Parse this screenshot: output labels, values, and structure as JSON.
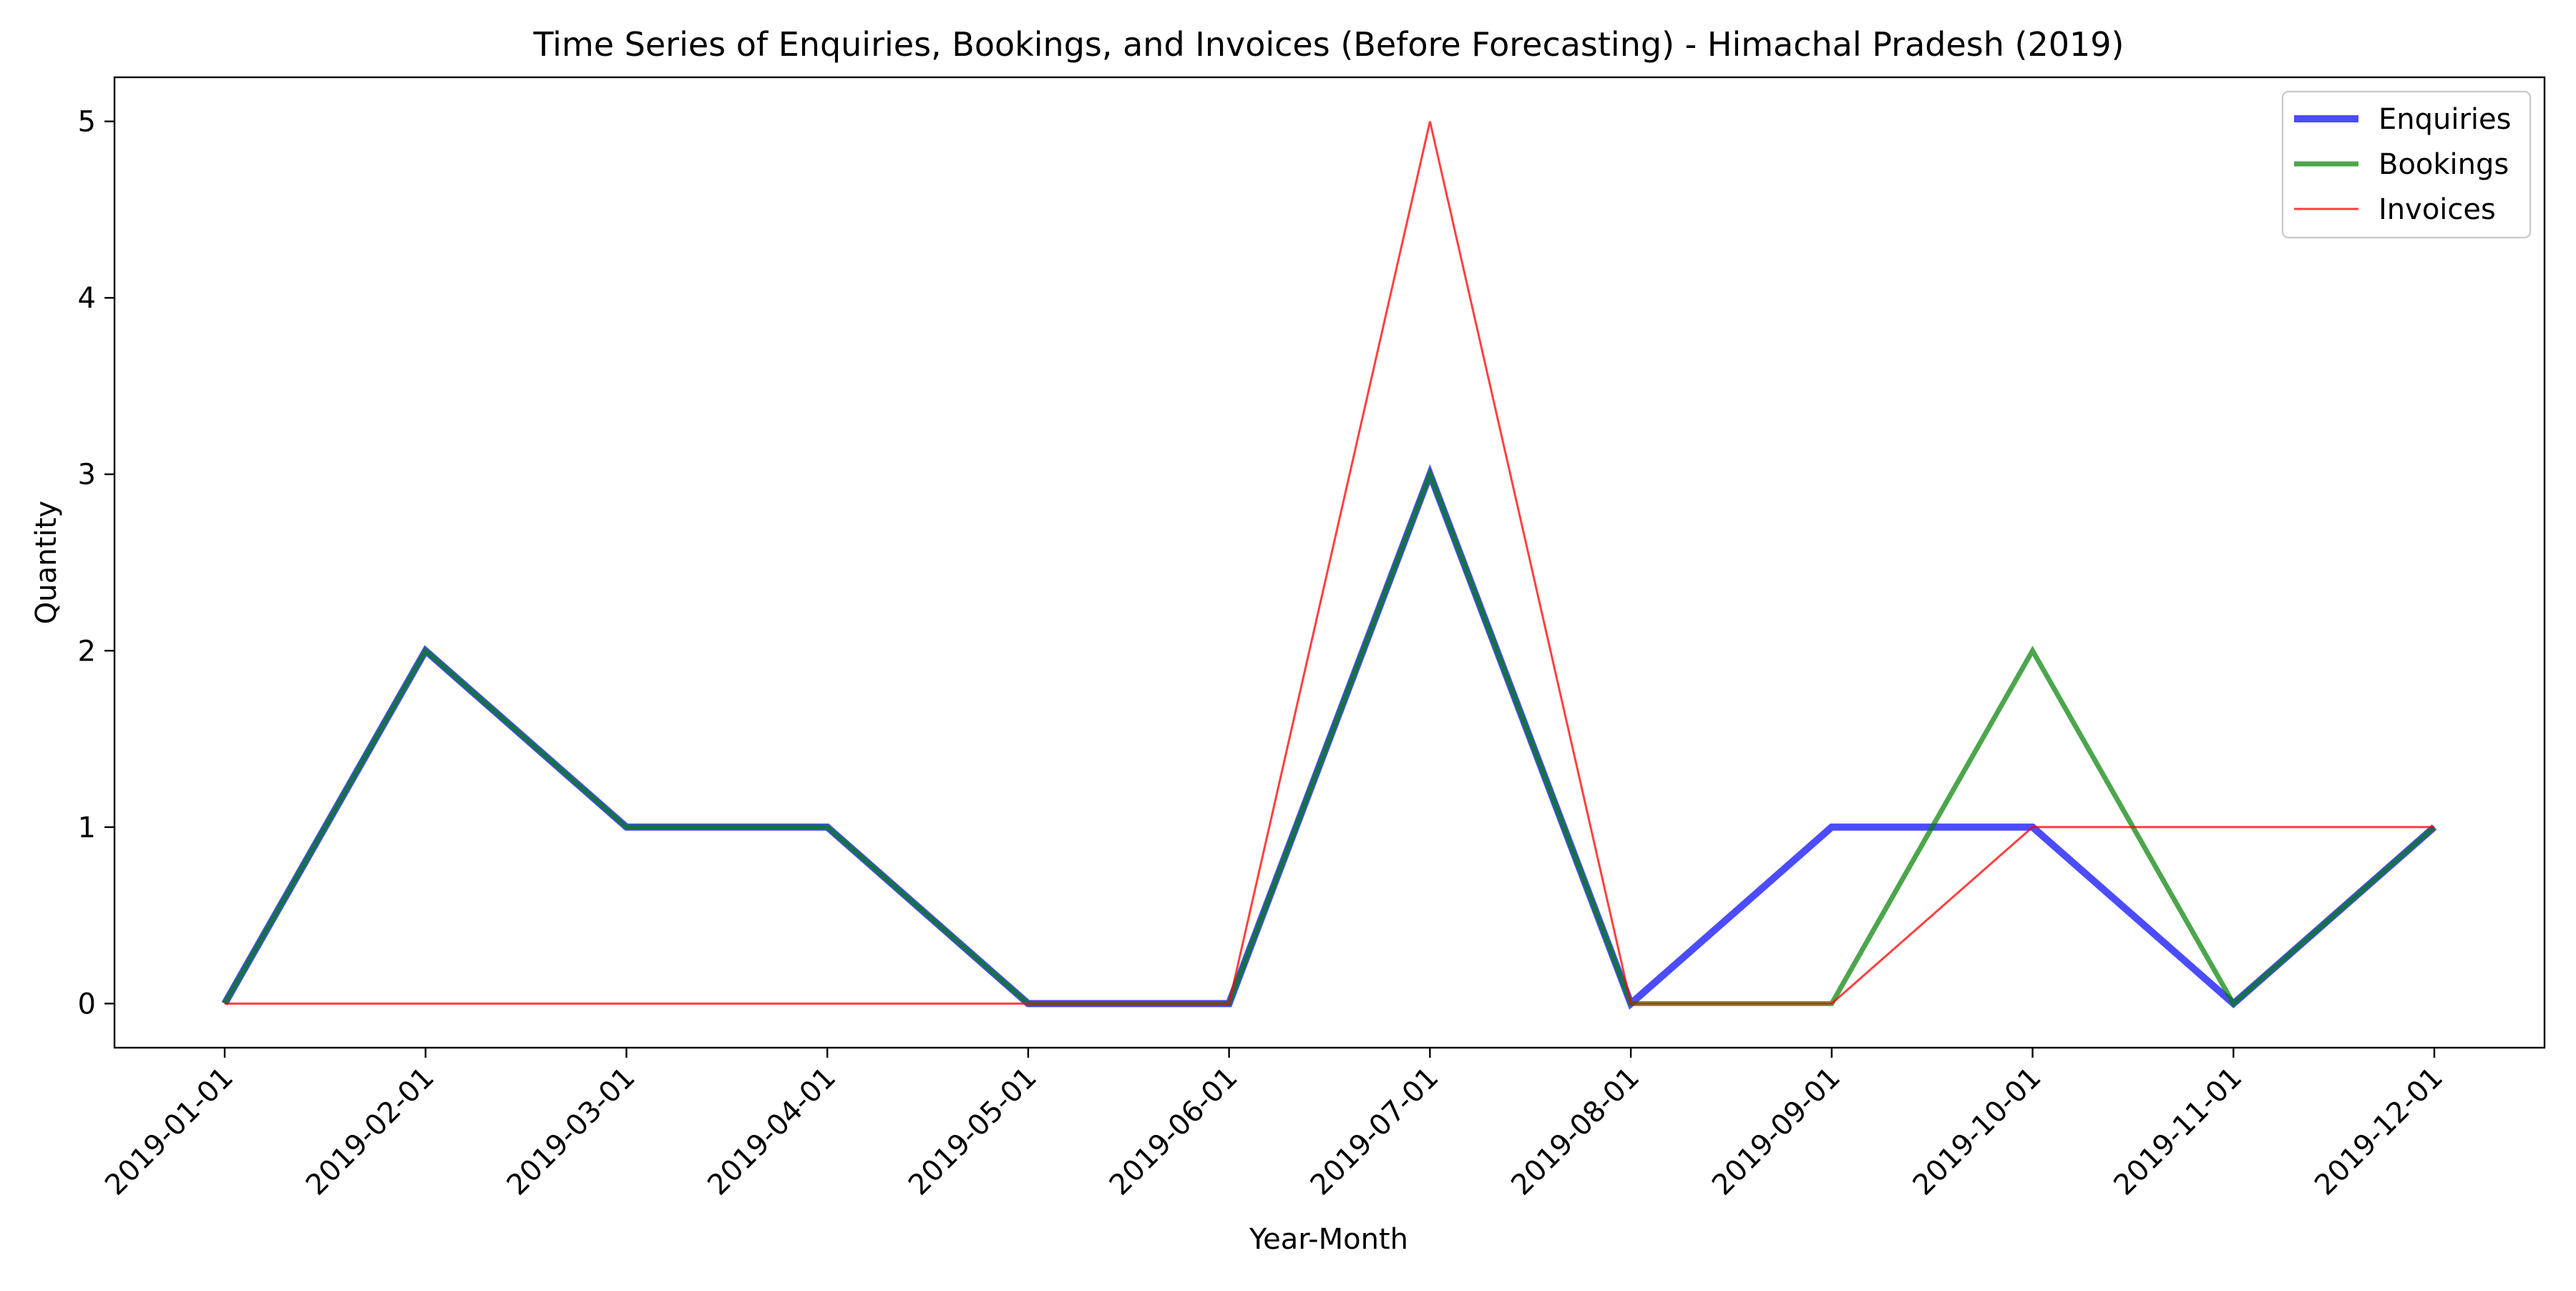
{
  "chart_data": {
    "type": "line",
    "title": "Time Series of Enquiries, Bookings, and Invoices (Before Forecasting) - Himachal Pradesh (2019)",
    "xlabel": "Year-Month",
    "ylabel": "Quantity",
    "categories": [
      "2019-01-01",
      "2019-02-01",
      "2019-03-01",
      "2019-04-01",
      "2019-05-01",
      "2019-06-01",
      "2019-07-01",
      "2019-08-01",
      "2019-09-01",
      "2019-10-01",
      "2019-11-01",
      "2019-12-01"
    ],
    "ylim": [
      -0.25,
      5.25
    ],
    "yticks": [
      0,
      1,
      2,
      3,
      4,
      5
    ],
    "grid": false,
    "legend_position": "top-right",
    "series": [
      {
        "name": "Enquiries",
        "values": [
          0,
          2,
          1,
          1,
          0,
          0,
          3,
          0,
          1,
          1,
          0,
          1
        ],
        "color": "#0000ff",
        "opacity": 0.7
      },
      {
        "name": "Bookings",
        "values": [
          0,
          2,
          1,
          1,
          0,
          0,
          3,
          0,
          0,
          2,
          0,
          1
        ],
        "color": "#008000",
        "opacity": 0.7
      },
      {
        "name": "Invoices",
        "values": [
          0,
          0,
          0,
          0,
          0,
          0,
          5,
          0,
          0,
          1,
          1,
          1
        ],
        "color": "#ff0000",
        "opacity": 0.75
      }
    ]
  }
}
